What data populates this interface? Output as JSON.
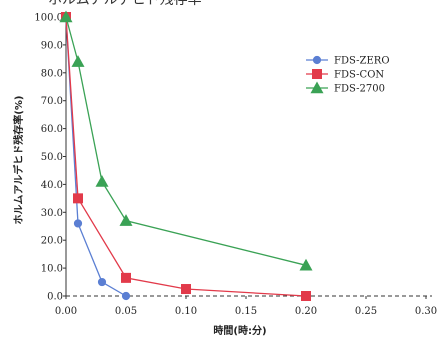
{
  "header_fragment": "ホルムアルデヒド残存率",
  "chart_data": {
    "type": "line",
    "xlabel": "時間(時:分)",
    "ylabel": "ホルムアルデヒド残存率(%)",
    "xlim": [
      0,
      0.3
    ],
    "ylim": [
      0,
      100
    ],
    "x_ticks": [
      "0.00",
      "0.05",
      "0.10",
      "0.15",
      "0.20",
      "0.25",
      "0.30"
    ],
    "y_ticks": [
      "0.0",
      "10.0",
      "20.0",
      "30.0",
      "40.0",
      "50.0",
      "60.0",
      "70.0",
      "80.0",
      "90.0",
      "100.0"
    ],
    "legend_position": "upper-right",
    "grid": false,
    "series": [
      {
        "name": "FDS-ZERO",
        "color": "#5b7fd3",
        "marker": "circle",
        "points": [
          [
            0.0,
            100.0
          ],
          [
            0.01,
            26.0
          ],
          [
            0.03,
            5.0
          ],
          [
            0.05,
            0.0
          ]
        ]
      },
      {
        "name": "FDS-CON",
        "color": "#e23a4a",
        "marker": "square",
        "points": [
          [
            0.0,
            100.0
          ],
          [
            0.01,
            35.0
          ],
          [
            0.05,
            6.5
          ],
          [
            0.1,
            2.5
          ],
          [
            0.2,
            0.0
          ]
        ]
      },
      {
        "name": "FDS-2700",
        "color": "#3aa255",
        "marker": "triangle",
        "points": [
          [
            0.0,
            100.0
          ],
          [
            0.01,
            84.0
          ],
          [
            0.03,
            41.0
          ],
          [
            0.05,
            27.0
          ],
          [
            0.2,
            11.0
          ]
        ]
      }
    ]
  }
}
